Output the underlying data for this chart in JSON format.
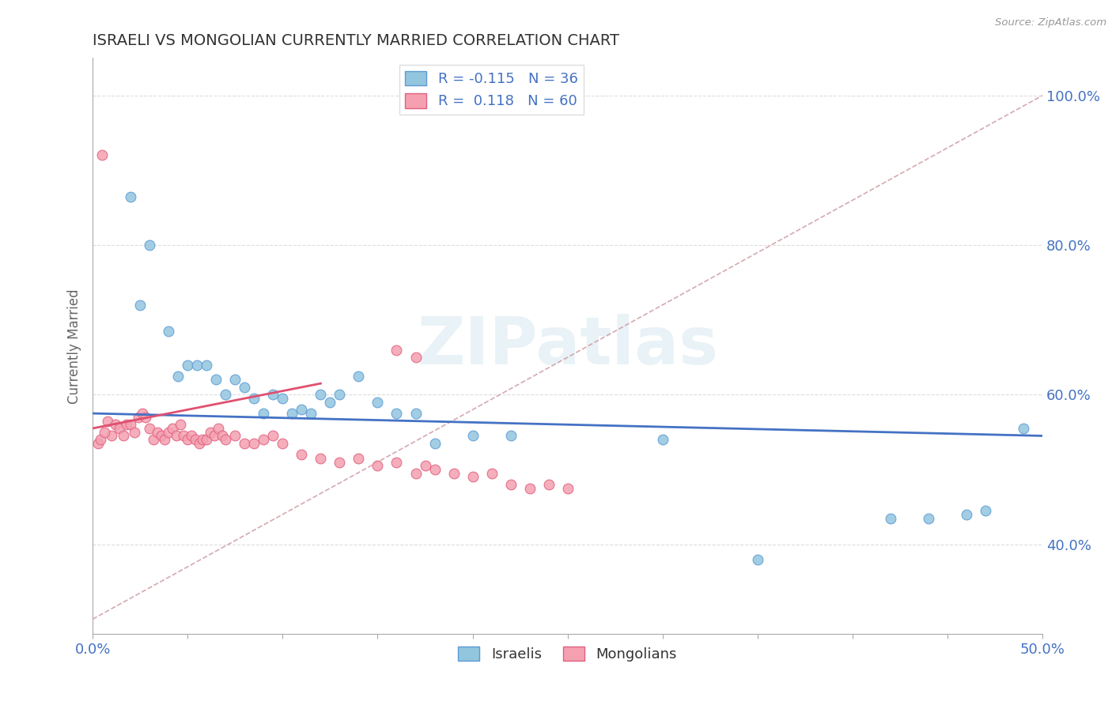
{
  "title": "ISRAELI VS MONGOLIAN CURRENTLY MARRIED CORRELATION CHART",
  "source": "Source: ZipAtlas.com",
  "ylabel": "Currently Married",
  "ytick_vals": [
    0.4,
    0.6,
    0.8,
    1.0
  ],
  "ytick_labels": [
    "40.0%",
    "60.0%",
    "80.0%",
    "100.0%"
  ],
  "xlim": [
    0.0,
    0.5
  ],
  "ylim": [
    0.28,
    1.05
  ],
  "legend_R1": "R = -0.115",
  "legend_N1": "N = 36",
  "legend_R2": "R =  0.118",
  "legend_N2": "N = 60",
  "color_israeli_fill": "#92C5DE",
  "color_israeli_edge": "#5B9BD5",
  "color_mongolian_fill": "#F4A0B0",
  "color_mongolian_edge": "#E06080",
  "color_trend_israeli": "#4472C4",
  "color_trend_mongolian": "#E05070",
  "color_reference": "#D0A0A8",
  "color_axis_label": "#4472C4",
  "color_title": "#333333",
  "color_grid": "#DDDDDD",
  "watermark_text": "ZIPatlas",
  "israelis_x": [
    0.02,
    0.025,
    0.03,
    0.04,
    0.045,
    0.05,
    0.055,
    0.06,
    0.065,
    0.07,
    0.075,
    0.08,
    0.085,
    0.09,
    0.095,
    0.1,
    0.105,
    0.11,
    0.115,
    0.12,
    0.125,
    0.13,
    0.14,
    0.15,
    0.16,
    0.17,
    0.18,
    0.2,
    0.22,
    0.3,
    0.35,
    0.42,
    0.44,
    0.46,
    0.47,
    0.49
  ],
  "israelis_y": [
    0.865,
    0.72,
    0.8,
    0.685,
    0.625,
    0.64,
    0.64,
    0.64,
    0.62,
    0.6,
    0.62,
    0.61,
    0.595,
    0.575,
    0.6,
    0.595,
    0.575,
    0.58,
    0.575,
    0.6,
    0.59,
    0.6,
    0.625,
    0.59,
    0.575,
    0.575,
    0.535,
    0.545,
    0.545,
    0.54,
    0.38,
    0.435,
    0.435,
    0.44,
    0.445,
    0.555
  ],
  "mongolians_x": [
    0.005,
    0.008,
    0.01,
    0.012,
    0.014,
    0.016,
    0.018,
    0.02,
    0.022,
    0.024,
    0.026,
    0.028,
    0.03,
    0.032,
    0.034,
    0.036,
    0.038,
    0.04,
    0.042,
    0.044,
    0.046,
    0.048,
    0.05,
    0.052,
    0.054,
    0.056,
    0.058,
    0.06,
    0.062,
    0.064,
    0.066,
    0.068,
    0.07,
    0.075,
    0.08,
    0.085,
    0.09,
    0.095,
    0.1,
    0.11,
    0.12,
    0.13,
    0.14,
    0.15,
    0.16,
    0.17,
    0.175,
    0.18,
    0.19,
    0.2,
    0.21,
    0.22,
    0.23,
    0.24,
    0.25,
    0.16,
    0.17,
    0.003,
    0.004,
    0.006
  ],
  "mongolians_y": [
    0.92,
    0.565,
    0.545,
    0.56,
    0.555,
    0.545,
    0.56,
    0.56,
    0.55,
    0.57,
    0.575,
    0.57,
    0.555,
    0.54,
    0.55,
    0.545,
    0.54,
    0.55,
    0.555,
    0.545,
    0.56,
    0.545,
    0.54,
    0.545,
    0.54,
    0.535,
    0.54,
    0.54,
    0.55,
    0.545,
    0.555,
    0.545,
    0.54,
    0.545,
    0.535,
    0.535,
    0.54,
    0.545,
    0.535,
    0.52,
    0.515,
    0.51,
    0.515,
    0.505,
    0.51,
    0.495,
    0.505,
    0.5,
    0.495,
    0.49,
    0.495,
    0.48,
    0.475,
    0.48,
    0.475,
    0.66,
    0.65,
    0.535,
    0.54,
    0.55
  ]
}
